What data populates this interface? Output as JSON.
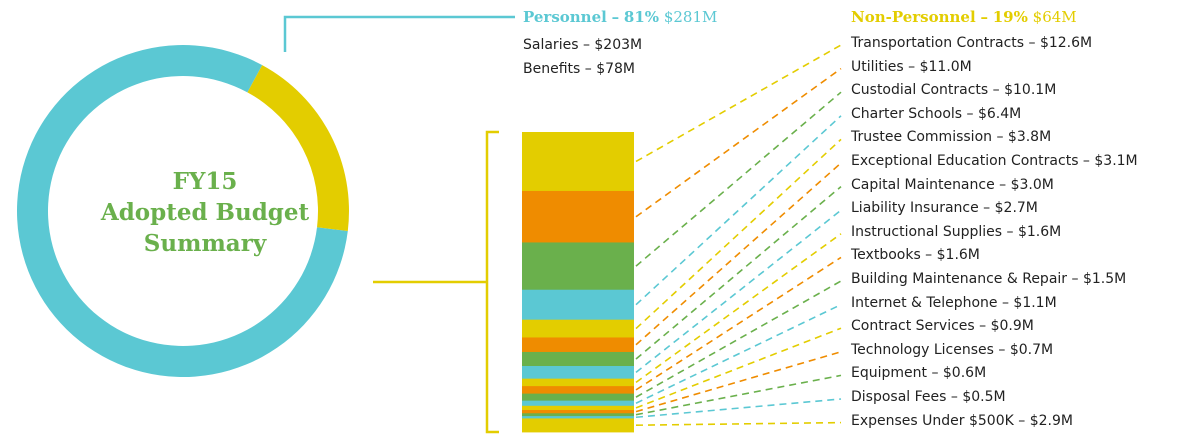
{
  "title_lines": [
    "FY15",
    "Adopted Budget",
    "Summary"
  ],
  "colors": {
    "personnel": "#5bc8d3",
    "non_personnel": "#e3cd00",
    "orange": "#ef8c00",
    "green": "#6ab04c",
    "title": "#6ab04c",
    "text": "#222222"
  },
  "personnel": {
    "name": "Personnel",
    "dash": "–",
    "pct": "81%",
    "amount": "$281M",
    "items": [
      "Salaries – $203M",
      "Benefits – $78M"
    ]
  },
  "non_personnel": {
    "name": "Non-Personnel",
    "dash": "–",
    "pct": "19%",
    "amount": "$64M"
  },
  "chart_data": {
    "type": "pie",
    "title": "FY15 Adopted Budget Summary",
    "slices": [
      {
        "label": "Personnel",
        "percent": 81,
        "value": 281,
        "unit": "$M",
        "color": "#5bc8d3"
      },
      {
        "label": "Non-Personnel",
        "percent": 19,
        "value": 64,
        "unit": "$M",
        "color": "#e3cd00"
      }
    ],
    "breakdown": {
      "of": "Non-Personnel",
      "type": "stacked-bar",
      "items": [
        {
          "label": "Transportation Contracts",
          "value": 12.6,
          "text": "Transportation Contracts – $12.6M",
          "color": "#e3cd00"
        },
        {
          "label": "Utilities",
          "value": 11.0,
          "text": "Utilities – $11.0M",
          "color": "#ef8c00"
        },
        {
          "label": "Custodial Contracts",
          "value": 10.1,
          "text": "Custodial Contracts – $10.1M",
          "color": "#6ab04c"
        },
        {
          "label": "Charter Schools",
          "value": 6.4,
          "text": "Charter Schools – $6.4M",
          "color": "#5bc8d3"
        },
        {
          "label": "Trustee Commission",
          "value": 3.8,
          "text": "Trustee Commission – $3.8M",
          "color": "#e3cd00"
        },
        {
          "label": "Exceptional Education Contracts",
          "value": 3.1,
          "text": "Exceptional Education Contracts – $3.1M",
          "color": "#ef8c00"
        },
        {
          "label": "Capital Maintenance",
          "value": 3.0,
          "text": "Capital Maintenance – $3.0M",
          "color": "#6ab04c"
        },
        {
          "label": "Liability Insurance",
          "value": 2.7,
          "text": "Liability Insurance – $2.7M",
          "color": "#5bc8d3"
        },
        {
          "label": "Instructional Supplies",
          "value": 1.6,
          "text": "Instructional Supplies – $1.6M",
          "color": "#e3cd00"
        },
        {
          "label": "Textbooks",
          "value": 1.6,
          "text": "Textbooks – $1.6M",
          "color": "#ef8c00"
        },
        {
          "label": "Building Maintenance & Repair",
          "value": 1.5,
          "text": "Building Maintenance & Repair – $1.5M",
          "color": "#6ab04c"
        },
        {
          "label": "Internet & Telephone",
          "value": 1.1,
          "text": "Internet & Telephone – $1.1M",
          "color": "#5bc8d3"
        },
        {
          "label": "Contract Services",
          "value": 0.9,
          "text": "Contract Services – $0.9M",
          "color": "#e3cd00"
        },
        {
          "label": "Technology Licenses",
          "value": 0.7,
          "text": "Technology Licenses – $0.7M",
          "color": "#ef8c00"
        },
        {
          "label": "Equipment",
          "value": 0.6,
          "text": "Equipment – $0.6M",
          "color": "#6ab04c"
        },
        {
          "label": "Disposal Fees",
          "value": 0.5,
          "text": "Disposal Fees – $0.5M",
          "color": "#5bc8d3"
        },
        {
          "label": "Expenses Under $500K",
          "value": 2.9,
          "text": "Expenses Under $500K – $2.9M",
          "color": "#e3cd00"
        }
      ]
    }
  }
}
